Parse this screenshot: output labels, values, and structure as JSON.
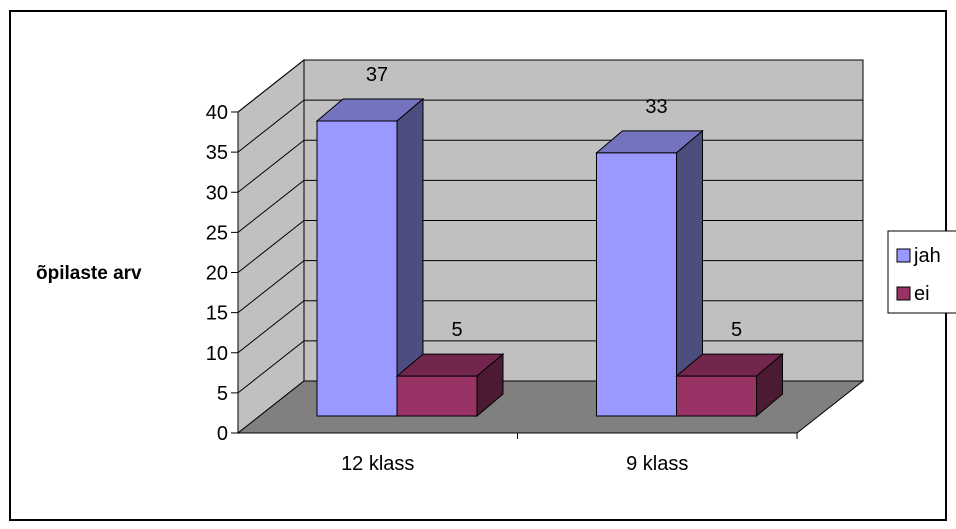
{
  "chart_data": {
    "type": "bar",
    "style": "3d-clustered-column",
    "categories": [
      "12 klass",
      "9 klass"
    ],
    "series": [
      {
        "name": "jah",
        "values": [
          37,
          33
        ],
        "color": "#9999ff"
      },
      {
        "name": "ei",
        "values": [
          5,
          5
        ],
        "color": "#993366"
      }
    ],
    "ylabel": "õpilaste arv",
    "xlabel": "",
    "title": "",
    "ylim": [
      0,
      40
    ],
    "yticks": [
      0,
      5,
      10,
      15,
      20,
      25,
      30,
      35,
      40
    ],
    "grid": true,
    "legend_position": "right",
    "wall_color": "#c0c0c0",
    "floor_color": "#808080"
  }
}
